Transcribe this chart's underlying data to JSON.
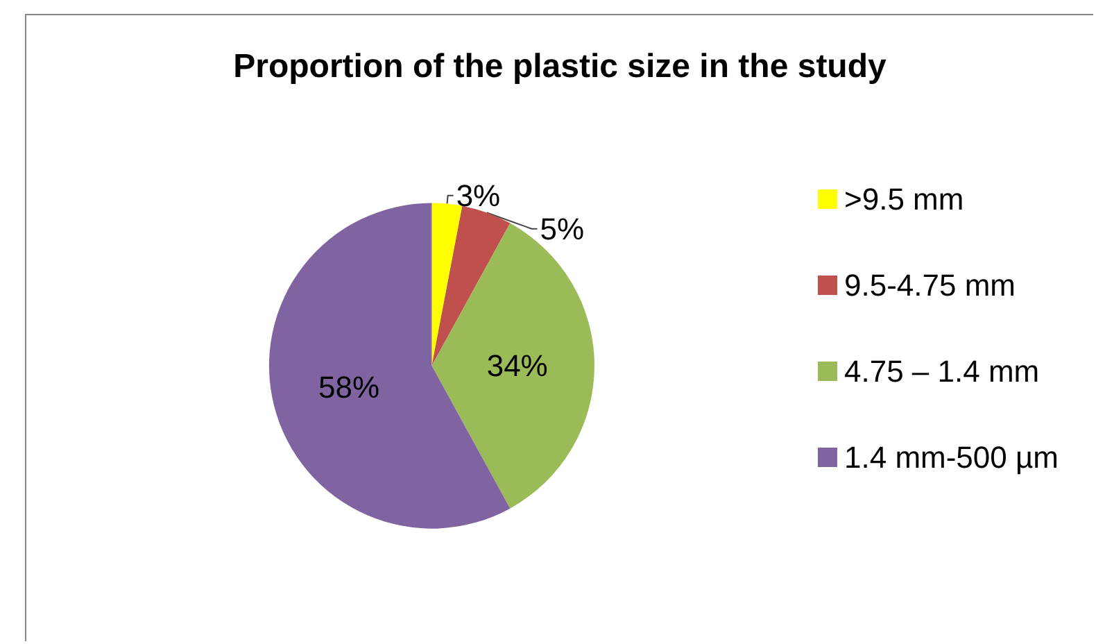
{
  "chart_data": {
    "type": "pie",
    "title": "Proportion of the plastic size in the study",
    "categories": [
      ">9.5 mm",
      "9.5-4.75 mm",
      "4.75 – 1.4 mm",
      "1.4 mm-500 µm"
    ],
    "values": [
      3,
      5,
      34,
      58
    ],
    "colors": [
      "#ffff00",
      "#c0504d",
      "#9bbb59",
      "#8064a2"
    ],
    "value_labels": [
      "3%",
      "5%",
      "34%",
      "58%"
    ],
    "legend": "right"
  }
}
